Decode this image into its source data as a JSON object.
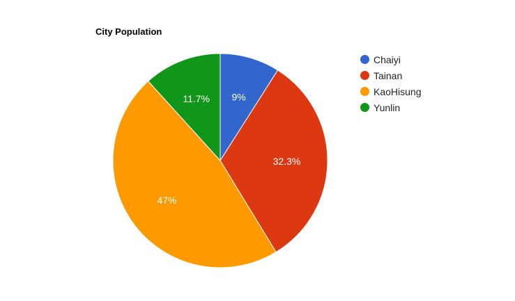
{
  "chart_data": {
    "type": "pie",
    "title": "City Population",
    "categories": [
      "Chaiyi",
      "Tainan",
      "KaoHisung",
      "Yunlin"
    ],
    "values": [
      9,
      32.3,
      47,
      11.7
    ],
    "labels": [
      "9%",
      "32.3%",
      "47%",
      "11.7%"
    ],
    "colors": [
      "#3366cc",
      "#dc3912",
      "#ff9900",
      "#109618"
    ],
    "legend_position": "right"
  }
}
